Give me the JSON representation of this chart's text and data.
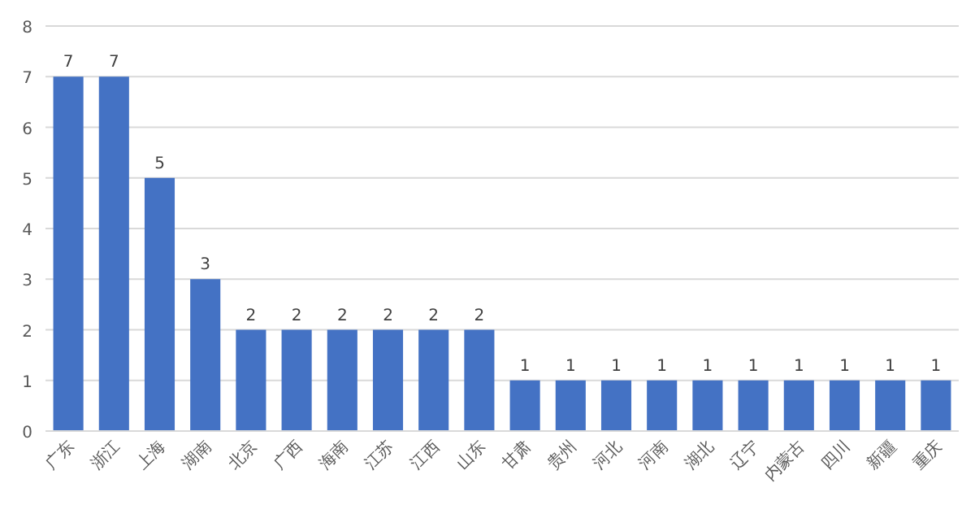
{
  "chart_data": {
    "type": "bar",
    "categories": [
      "广东",
      "浙江",
      "上海",
      "湖南",
      "北京",
      "广西",
      "海南",
      "江苏",
      "江西",
      "山东",
      "甘肃",
      "贵州",
      "河北",
      "河南",
      "湖北",
      "辽宁",
      "内蒙古",
      "四川",
      "新疆",
      "重庆"
    ],
    "values": [
      7,
      7,
      5,
      3,
      2,
      2,
      2,
      2,
      2,
      2,
      1,
      1,
      1,
      1,
      1,
      1,
      1,
      1,
      1,
      1
    ],
    "color": "#4472c4",
    "ylim": [
      0,
      8
    ],
    "yticks": [
      0,
      1,
      2,
      3,
      4,
      5,
      6,
      7,
      8
    ],
    "grid": "y",
    "data_labels": true
  }
}
